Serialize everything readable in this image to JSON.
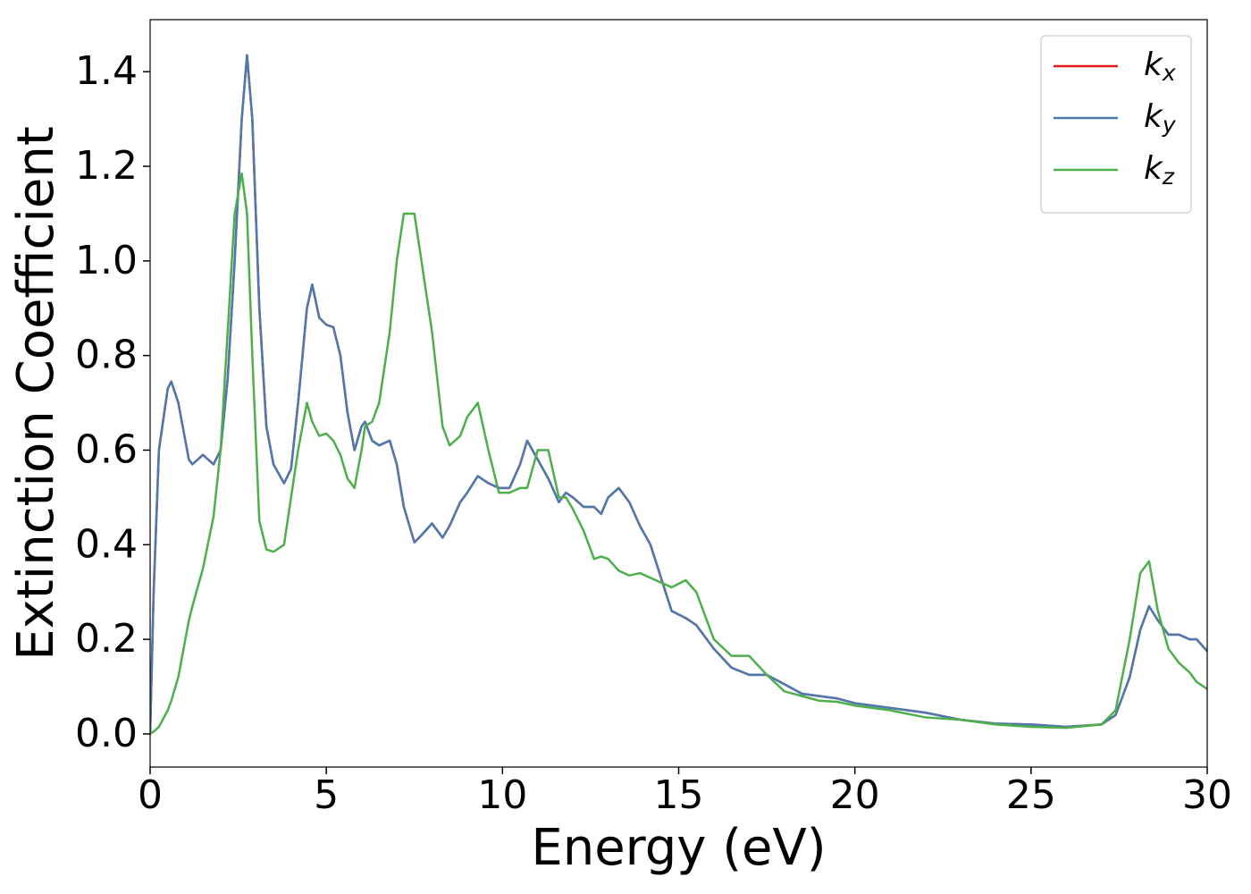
{
  "chart_data": {
    "type": "line",
    "x_label": "Energy (eV)",
    "y_label": "Extinction Coefficient",
    "x": [
      0,
      0.1,
      0.25,
      0.5,
      0.6,
      0.8,
      1.0,
      1.1,
      1.2,
      1.5,
      1.8,
      2.0,
      2.2,
      2.4,
      2.6,
      2.75,
      2.9,
      3.1,
      3.3,
      3.5,
      3.8,
      4.0,
      4.2,
      4.45,
      4.6,
      4.8,
      5.0,
      5.2,
      5.4,
      5.6,
      5.8,
      6.0,
      6.1,
      6.3,
      6.5,
      6.8,
      7.0,
      7.2,
      7.5,
      7.7,
      8.0,
      8.3,
      8.5,
      8.8,
      9.0,
      9.3,
      9.6,
      9.9,
      10.2,
      10.5,
      10.7,
      11.0,
      11.3,
      11.6,
      11.8,
      12.0,
      12.3,
      12.6,
      12.8,
      13.0,
      13.3,
      13.6,
      13.9,
      14.2,
      14.5,
      14.8,
      15.2,
      15.5,
      16.0,
      16.5,
      17.0,
      17.5,
      18.0,
      18.5,
      19.0,
      19.5,
      20.0,
      21.0,
      22.0,
      23.0,
      24.0,
      25.0,
      26.0,
      27.0,
      27.4,
      27.8,
      28.1,
      28.35,
      28.6,
      28.9,
      29.2,
      29.5,
      29.7,
      30
    ],
    "series": [
      {
        "name": "kx",
        "color": "#e41a1c",
        "values": [
          0,
          0.3,
          0.6,
          0.73,
          0.745,
          0.7,
          0.62,
          0.58,
          0.57,
          0.59,
          0.57,
          0.6,
          0.75,
          1.0,
          1.3,
          1.435,
          1.3,
          0.9,
          0.65,
          0.57,
          0.53,
          0.56,
          0.7,
          0.9,
          0.95,
          0.88,
          0.865,
          0.86,
          0.8,
          0.68,
          0.6,
          0.65,
          0.66,
          0.62,
          0.61,
          0.62,
          0.57,
          0.48,
          0.405,
          0.42,
          0.445,
          0.415,
          0.44,
          0.49,
          0.51,
          0.545,
          0.53,
          0.52,
          0.52,
          0.57,
          0.62,
          0.58,
          0.54,
          0.49,
          0.51,
          0.5,
          0.48,
          0.48,
          0.465,
          0.5,
          0.52,
          0.49,
          0.44,
          0.4,
          0.33,
          0.26,
          0.245,
          0.23,
          0.18,
          0.14,
          0.125,
          0.125,
          0.105,
          0.085,
          0.08,
          0.075,
          0.065,
          0.055,
          0.045,
          0.03,
          0.022,
          0.02,
          0.015,
          0.02,
          0.04,
          0.12,
          0.22,
          0.27,
          0.24,
          0.21,
          0.21,
          0.2,
          0.2,
          0.175
        ]
      },
      {
        "name": "ky",
        "color": "#4a7ab0",
        "values": [
          0,
          0.3,
          0.6,
          0.73,
          0.745,
          0.7,
          0.62,
          0.58,
          0.57,
          0.59,
          0.57,
          0.6,
          0.75,
          1.0,
          1.3,
          1.435,
          1.3,
          0.9,
          0.65,
          0.57,
          0.53,
          0.56,
          0.7,
          0.9,
          0.95,
          0.88,
          0.865,
          0.86,
          0.8,
          0.68,
          0.6,
          0.65,
          0.66,
          0.62,
          0.61,
          0.62,
          0.57,
          0.48,
          0.405,
          0.42,
          0.445,
          0.415,
          0.44,
          0.49,
          0.51,
          0.545,
          0.53,
          0.52,
          0.52,
          0.57,
          0.62,
          0.58,
          0.54,
          0.49,
          0.51,
          0.5,
          0.48,
          0.48,
          0.465,
          0.5,
          0.52,
          0.49,
          0.44,
          0.4,
          0.33,
          0.26,
          0.245,
          0.23,
          0.18,
          0.14,
          0.125,
          0.125,
          0.105,
          0.085,
          0.08,
          0.075,
          0.065,
          0.055,
          0.045,
          0.03,
          0.022,
          0.02,
          0.015,
          0.02,
          0.04,
          0.12,
          0.22,
          0.27,
          0.24,
          0.21,
          0.21,
          0.2,
          0.2,
          0.175
        ]
      },
      {
        "name": "kz",
        "color": "#4daf4a",
        "values": [
          0,
          0.005,
          0.015,
          0.05,
          0.07,
          0.12,
          0.2,
          0.24,
          0.27,
          0.35,
          0.46,
          0.6,
          0.85,
          1.1,
          1.185,
          1.1,
          0.8,
          0.45,
          0.39,
          0.385,
          0.4,
          0.5,
          0.6,
          0.7,
          0.66,
          0.63,
          0.635,
          0.62,
          0.59,
          0.54,
          0.52,
          0.6,
          0.65,
          0.66,
          0.7,
          0.85,
          1.0,
          1.1,
          1.1,
          1.0,
          0.85,
          0.65,
          0.61,
          0.63,
          0.67,
          0.7,
          0.6,
          0.51,
          0.51,
          0.52,
          0.52,
          0.6,
          0.6,
          0.5,
          0.5,
          0.475,
          0.43,
          0.37,
          0.375,
          0.37,
          0.345,
          0.335,
          0.34,
          0.33,
          0.32,
          0.31,
          0.325,
          0.3,
          0.2,
          0.165,
          0.165,
          0.125,
          0.09,
          0.08,
          0.07,
          0.068,
          0.06,
          0.05,
          0.035,
          0.03,
          0.02,
          0.015,
          0.013,
          0.02,
          0.05,
          0.2,
          0.34,
          0.365,
          0.26,
          0.18,
          0.15,
          0.13,
          0.11,
          0.095
        ]
      }
    ],
    "xlim": [
      0,
      30
    ],
    "xticks": [
      0,
      5,
      10,
      15,
      20,
      25,
      30
    ],
    "ylim": [
      -0.07,
      1.51
    ],
    "yticks": [
      {
        "value": 0,
        "label": "0.0"
      },
      0.2,
      0.4,
      0.6,
      0.8,
      {
        "value": 1,
        "label": "1.0"
      },
      1.2,
      1.4
    ],
    "legend": "upper right",
    "grid": false
  }
}
